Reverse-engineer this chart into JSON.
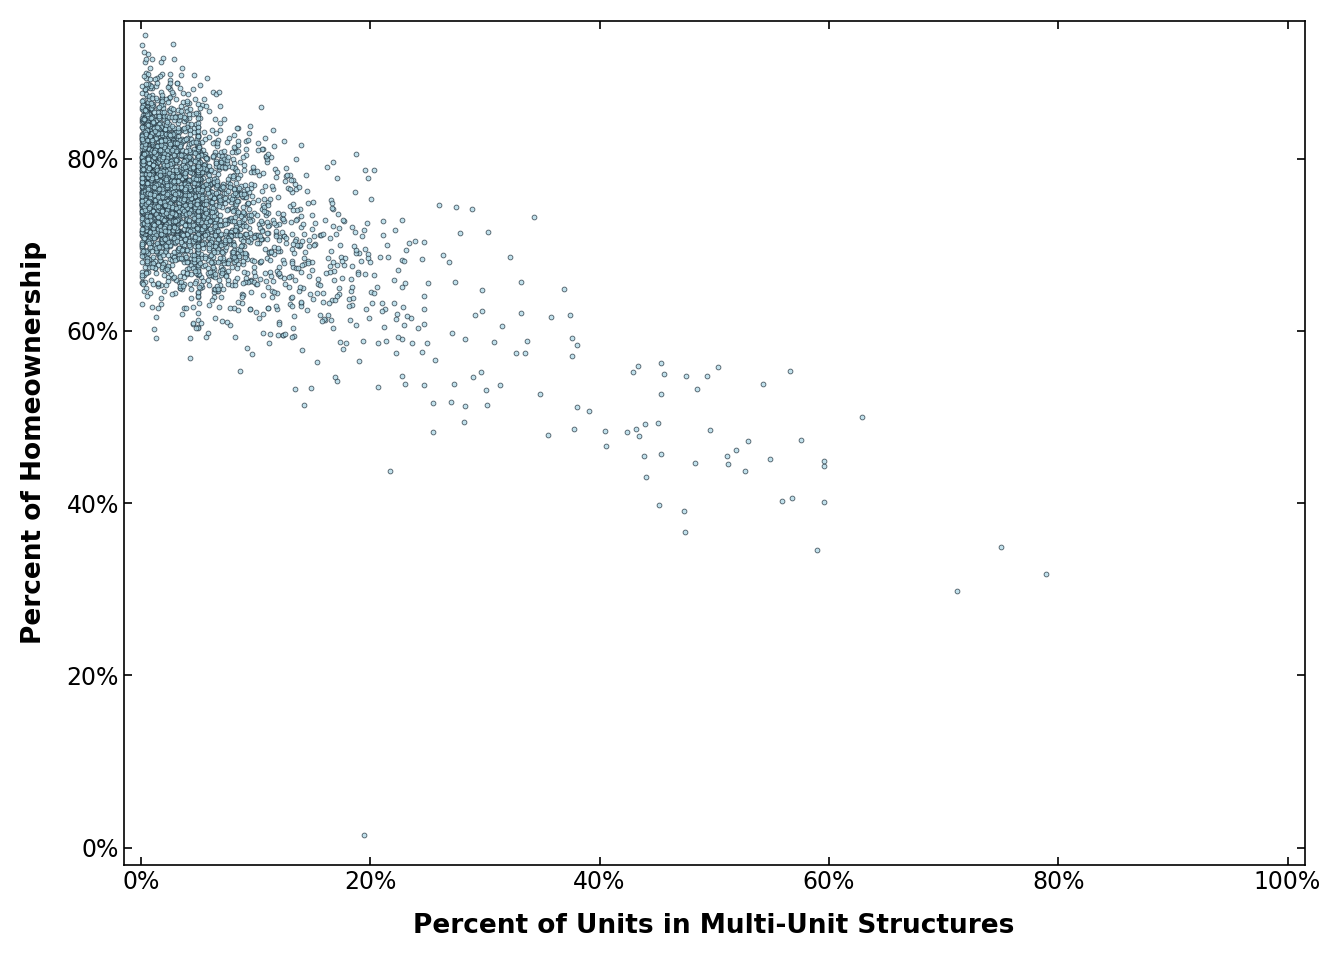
{
  "n_points": 3143,
  "xlabel": "Percent of Units in Multi-Unit Structures",
  "ylabel": "Percent of Homeownership",
  "xlim": [
    -0.015,
    1.015
  ],
  "ylim": [
    -0.02,
    0.96
  ],
  "xticks": [
    0.0,
    0.2,
    0.4,
    0.6,
    0.8,
    1.0
  ],
  "yticks": [
    0.0,
    0.2,
    0.4,
    0.6,
    0.8
  ],
  "xtick_labels": [
    "0%",
    "20%",
    "40%",
    "60%",
    "80%",
    "100%"
  ],
  "ytick_labels": [
    "0%",
    "20%",
    "40%",
    "60%",
    "80%"
  ],
  "dot_facecolor": "#add8e6",
  "dot_edgecolor": "#1a2a35",
  "dot_size": 12,
  "dot_linewidth": 0.6,
  "dot_alpha": 0.75,
  "background_color": "#ffffff",
  "seed": 42,
  "figsize": [
    13.44,
    9.6
  ],
  "dpi": 100,
  "font_family": "DejaVu Sans"
}
